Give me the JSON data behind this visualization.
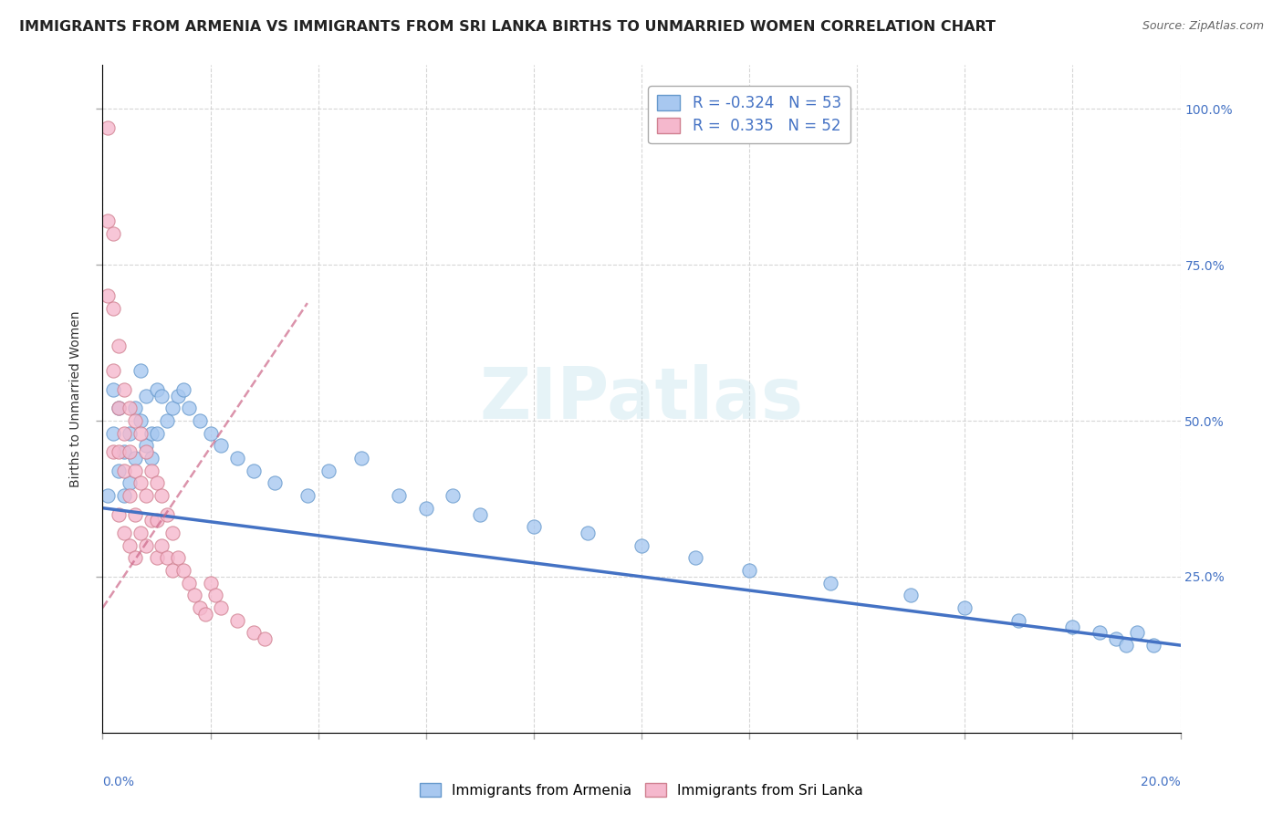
{
  "title": "IMMIGRANTS FROM ARMENIA VS IMMIGRANTS FROM SRI LANKA BIRTHS TO UNMARRIED WOMEN CORRELATION CHART",
  "source": "Source: ZipAtlas.com",
  "ylabel": "Births to Unmarried Women",
  "right_ytick_labels": [
    "100.0%",
    "75.0%",
    "50.0%",
    "25.0%"
  ],
  "right_ytick_vals": [
    1.0,
    0.75,
    0.5,
    0.25
  ],
  "xlim": [
    0.0,
    0.2
  ],
  "ylim": [
    0.0,
    1.07
  ],
  "color_armenia": "#a8c8f0",
  "color_armenia_edge": "#6699cc",
  "color_sri_lanka": "#f5b8cd",
  "color_sri_lanka_edge": "#d08090",
  "color_armenia_line": "#4472c4",
  "color_sri_lanka_line": "#cc6688",
  "watermark": "ZIPatlas",
  "armenia_x": [
    0.001,
    0.002,
    0.002,
    0.003,
    0.003,
    0.004,
    0.004,
    0.005,
    0.005,
    0.006,
    0.006,
    0.007,
    0.007,
    0.008,
    0.008,
    0.009,
    0.009,
    0.01,
    0.01,
    0.011,
    0.012,
    0.013,
    0.014,
    0.015,
    0.016,
    0.018,
    0.02,
    0.022,
    0.025,
    0.028,
    0.032,
    0.038,
    0.042,
    0.048,
    0.055,
    0.06,
    0.065,
    0.07,
    0.08,
    0.09,
    0.1,
    0.11,
    0.12,
    0.135,
    0.15,
    0.16,
    0.17,
    0.18,
    0.185,
    0.188,
    0.19,
    0.192,
    0.195
  ],
  "armenia_y": [
    0.38,
    0.48,
    0.55,
    0.42,
    0.52,
    0.38,
    0.45,
    0.4,
    0.48,
    0.44,
    0.52,
    0.5,
    0.58,
    0.46,
    0.54,
    0.48,
    0.44,
    0.55,
    0.48,
    0.54,
    0.5,
    0.52,
    0.54,
    0.55,
    0.52,
    0.5,
    0.48,
    0.46,
    0.44,
    0.42,
    0.4,
    0.38,
    0.42,
    0.44,
    0.38,
    0.36,
    0.38,
    0.35,
    0.33,
    0.32,
    0.3,
    0.28,
    0.26,
    0.24,
    0.22,
    0.2,
    0.18,
    0.17,
    0.16,
    0.15,
    0.14,
    0.16,
    0.14
  ],
  "sri_lanka_x": [
    0.001,
    0.001,
    0.001,
    0.002,
    0.002,
    0.002,
    0.002,
    0.003,
    0.003,
    0.003,
    0.003,
    0.004,
    0.004,
    0.004,
    0.004,
    0.005,
    0.005,
    0.005,
    0.005,
    0.006,
    0.006,
    0.006,
    0.006,
    0.007,
    0.007,
    0.007,
    0.008,
    0.008,
    0.008,
    0.009,
    0.009,
    0.01,
    0.01,
    0.01,
    0.011,
    0.011,
    0.012,
    0.012,
    0.013,
    0.013,
    0.014,
    0.015,
    0.016,
    0.017,
    0.018,
    0.019,
    0.02,
    0.021,
    0.022,
    0.025,
    0.028,
    0.03
  ],
  "sri_lanka_y": [
    0.97,
    0.82,
    0.7,
    0.8,
    0.68,
    0.58,
    0.45,
    0.62,
    0.52,
    0.45,
    0.35,
    0.55,
    0.48,
    0.42,
    0.32,
    0.52,
    0.45,
    0.38,
    0.3,
    0.5,
    0.42,
    0.35,
    0.28,
    0.48,
    0.4,
    0.32,
    0.45,
    0.38,
    0.3,
    0.42,
    0.34,
    0.4,
    0.34,
    0.28,
    0.38,
    0.3,
    0.35,
    0.28,
    0.32,
    0.26,
    0.28,
    0.26,
    0.24,
    0.22,
    0.2,
    0.19,
    0.24,
    0.22,
    0.2,
    0.18,
    0.16,
    0.15
  ],
  "grid_color": "#cccccc",
  "background_color": "#ffffff",
  "title_fontsize": 11.5,
  "axis_label_fontsize": 10,
  "tick_fontsize": 10,
  "legend_fontsize": 12
}
